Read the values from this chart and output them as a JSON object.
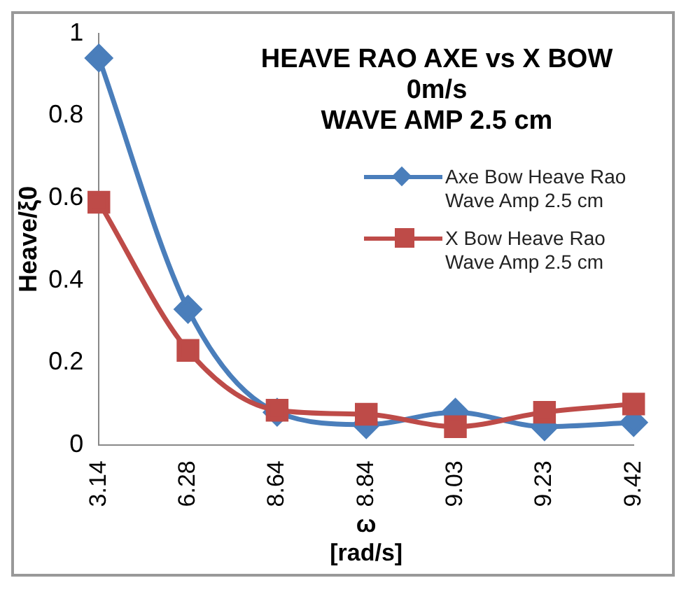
{
  "chart_data": {
    "type": "line",
    "title": "HEAVE RAO AXE vs X BOW\n0m/s\nWAVE AMP 2.5 cm",
    "xlabel": "ω\n[rad/s]",
    "ylabel": "Heave/ξ0",
    "categories": [
      "3.14",
      "6.28",
      "8.64",
      "8.84",
      "9.03",
      "9.23",
      "9.42"
    ],
    "series": [
      {
        "name": "Axe Bow Heave Rao Wave Amp 2.5 cm",
        "color": "#4a7ebb",
        "marker": "diamond",
        "values": [
          0.94,
          0.33,
          0.08,
          0.05,
          0.08,
          0.045,
          0.055
        ]
      },
      {
        "name": "X Bow Heave Rao Wave Amp 2.5 cm",
        "color": "#be4b48",
        "marker": "square",
        "values": [
          0.59,
          0.23,
          0.085,
          0.075,
          0.045,
          0.08,
          0.1
        ]
      }
    ],
    "ylim": [
      0,
      1
    ],
    "yticks": [
      0,
      0.2,
      0.4,
      0.6,
      0.8,
      1
    ],
    "grid": false,
    "legend": "top right"
  }
}
